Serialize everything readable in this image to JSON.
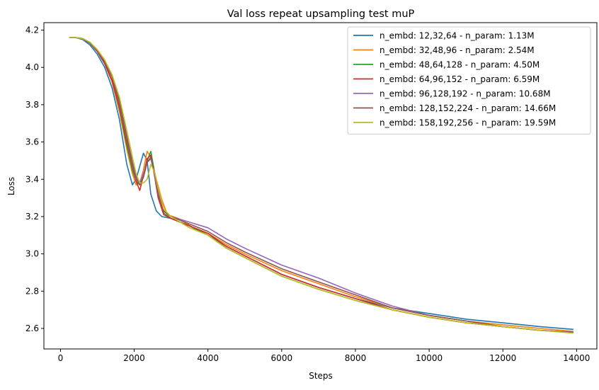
{
  "chart_data": {
    "type": "line",
    "title": "Val loss repeat upsampling  test muP",
    "xlabel": "Steps",
    "ylabel": "Loss",
    "xlim": [
      -450,
      14550
    ],
    "ylim": [
      2.49,
      4.24
    ],
    "x_ticks": [
      0,
      2000,
      4000,
      6000,
      8000,
      10000,
      12000,
      14000
    ],
    "y_ticks": [
      2.6,
      2.8,
      3.0,
      3.2,
      3.4,
      3.6,
      3.8,
      4.0,
      4.2
    ],
    "x_tick_labels": [
      "0",
      "2000",
      "4000",
      "6000",
      "8000",
      "10000",
      "12000",
      "14000"
    ],
    "y_tick_labels": [
      "2.6",
      "2.8",
      "3.0",
      "3.2",
      "3.4",
      "3.6",
      "3.8",
      "4.0",
      "4.2"
    ],
    "grid": false,
    "legend_position": "top-right",
    "series": [
      {
        "name": "n_embd: 12,32,64 - n_param: 1.13M",
        "color": "#1f77b4",
        "x": [
          250,
          400,
          600,
          800,
          1000,
          1200,
          1400,
          1600,
          1800,
          1950,
          2050,
          2150,
          2250,
          2350,
          2450,
          2600,
          2750,
          3000,
          3500,
          4000,
          4500,
          5000,
          6000,
          7000,
          8000,
          9000,
          10000,
          11000,
          12000,
          13000,
          13900
        ],
        "values": [
          4.16,
          4.16,
          4.15,
          4.12,
          4.07,
          4.0,
          3.89,
          3.72,
          3.48,
          3.37,
          3.4,
          3.47,
          3.54,
          3.5,
          3.32,
          3.23,
          3.2,
          3.19,
          3.15,
          3.1,
          3.04,
          2.99,
          2.89,
          2.82,
          2.76,
          2.71,
          2.68,
          2.65,
          2.63,
          2.61,
          2.595
        ]
      },
      {
        "name": "n_embd: 32,48,96 - n_param: 2.54M",
        "color": "#ff7f0e",
        "x": [
          250,
          400,
          600,
          800,
          1000,
          1200,
          1400,
          1600,
          1800,
          1950,
          2050,
          2150,
          2250,
          2350,
          2450,
          2600,
          2750,
          2900,
          3200,
          3600,
          4000,
          4500,
          5000,
          6000,
          7000,
          8000,
          9000,
          10000,
          11000,
          12000,
          13000,
          13900
        ],
        "values": [
          4.16,
          4.16,
          4.155,
          4.13,
          4.085,
          4.02,
          3.92,
          3.76,
          3.56,
          3.43,
          3.37,
          3.38,
          3.45,
          3.55,
          3.52,
          3.4,
          3.29,
          3.21,
          3.19,
          3.14,
          3.11,
          3.05,
          3.0,
          2.91,
          2.84,
          2.77,
          2.71,
          2.67,
          2.64,
          2.62,
          2.6,
          2.585
        ]
      },
      {
        "name": "n_embd: 48,64,128 - n_param: 4.50M",
        "color": "#2ca02c",
        "x": [
          250,
          400,
          600,
          800,
          1000,
          1200,
          1400,
          1600,
          1800,
          1950,
          2050,
          2150,
          2250,
          2350,
          2450,
          2550,
          2650,
          2800,
          3000,
          3500,
          4000,
          4500,
          5000,
          6000,
          7000,
          8000,
          9000,
          10000,
          11000,
          12000,
          13000,
          13900
        ],
        "values": [
          4.16,
          4.16,
          4.155,
          4.13,
          4.085,
          4.02,
          3.93,
          3.78,
          3.58,
          3.45,
          3.39,
          3.37,
          3.42,
          3.5,
          3.55,
          3.44,
          3.32,
          3.22,
          3.19,
          3.15,
          3.1,
          3.03,
          2.98,
          2.88,
          2.81,
          2.75,
          2.7,
          2.66,
          2.63,
          2.61,
          2.59,
          2.58
        ]
      },
      {
        "name": "n_embd: 64,96,152 - n_param: 6.59M",
        "color": "#d62728",
        "x": [
          250,
          400,
          600,
          800,
          1000,
          1200,
          1400,
          1600,
          1800,
          1950,
          2050,
          2150,
          2250,
          2350,
          2450,
          2550,
          2650,
          2800,
          3000,
          3500,
          4000,
          4500,
          5000,
          6000,
          7000,
          8000,
          9000,
          10000,
          11000,
          12000,
          13000,
          13900
        ],
        "values": [
          4.16,
          4.16,
          4.155,
          4.13,
          4.085,
          4.02,
          3.93,
          3.79,
          3.6,
          3.47,
          3.39,
          3.34,
          3.42,
          3.51,
          3.53,
          3.42,
          3.3,
          3.21,
          3.19,
          3.15,
          3.11,
          3.04,
          2.99,
          2.89,
          2.82,
          2.76,
          2.7,
          2.66,
          2.63,
          2.61,
          2.59,
          2.58
        ]
      },
      {
        "name": "n_embd: 96,128,192 - n_param: 10.68M",
        "color": "#9467bd",
        "x": [
          250,
          400,
          600,
          800,
          1000,
          1200,
          1400,
          1600,
          1800,
          1950,
          2050,
          2150,
          2250,
          2350,
          2450,
          2550,
          2650,
          2800,
          3000,
          3500,
          4000,
          4500,
          5000,
          6000,
          7000,
          8000,
          9000,
          10000,
          11000,
          12000,
          13000,
          13900
        ],
        "values": [
          4.16,
          4.16,
          4.155,
          4.13,
          4.09,
          4.03,
          3.95,
          3.81,
          3.62,
          3.48,
          3.4,
          3.38,
          3.43,
          3.49,
          3.51,
          3.43,
          3.32,
          3.23,
          3.2,
          3.17,
          3.14,
          3.08,
          3.03,
          2.94,
          2.87,
          2.79,
          2.72,
          2.67,
          2.64,
          2.61,
          2.59,
          2.58
        ]
      },
      {
        "name": "n_embd: 128,152,224 - n_param: 14.66M",
        "color": "#8c564b",
        "x": [
          250,
          400,
          600,
          800,
          1000,
          1200,
          1400,
          1600,
          1800,
          1950,
          2050,
          2150,
          2250,
          2350,
          2450,
          2550,
          2650,
          2800,
          3000,
          3500,
          4000,
          4500,
          5000,
          6000,
          7000,
          8000,
          9000,
          10000,
          11000,
          12000,
          13000,
          13900
        ],
        "values": [
          4.16,
          4.16,
          4.155,
          4.13,
          4.09,
          4.03,
          3.95,
          3.82,
          3.63,
          3.49,
          3.41,
          3.37,
          3.41,
          3.49,
          3.52,
          3.44,
          3.33,
          3.23,
          3.2,
          3.16,
          3.12,
          3.06,
          3.01,
          2.92,
          2.85,
          2.78,
          2.71,
          2.67,
          2.64,
          2.61,
          2.59,
          2.578
        ]
      },
      {
        "name": "n_embd: 158,192,256 - n_param: 19.59M",
        "color": "#bcbd22",
        "x": [
          250,
          400,
          600,
          800,
          1000,
          1200,
          1400,
          1600,
          1800,
          1950,
          2050,
          2150,
          2250,
          2350,
          2450,
          2550,
          2650,
          2800,
          3000,
          3500,
          4000,
          4500,
          5000,
          6000,
          7000,
          8000,
          9000,
          10000,
          11000,
          12000,
          13000,
          13900
        ],
        "values": [
          4.16,
          4.16,
          4.155,
          4.135,
          4.095,
          4.04,
          3.96,
          3.84,
          3.66,
          3.52,
          3.43,
          3.38,
          3.38,
          3.4,
          3.48,
          3.44,
          3.35,
          3.24,
          3.2,
          3.14,
          3.1,
          3.03,
          2.98,
          2.88,
          2.81,
          2.75,
          2.7,
          2.66,
          2.63,
          2.61,
          2.59,
          2.575
        ]
      }
    ]
  }
}
